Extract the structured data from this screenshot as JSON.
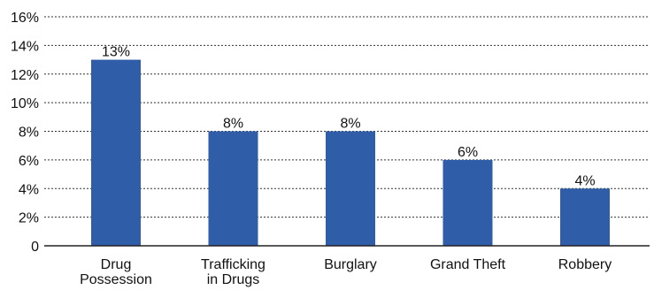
{
  "chart_data": {
    "type": "bar",
    "title": "",
    "xlabel": "",
    "ylabel": "",
    "ylim": [
      0,
      16
    ],
    "grid": true,
    "y_ticks": [
      "0",
      "2%",
      "4%",
      "6%",
      "8%",
      "10%",
      "12%",
      "14%",
      "16%"
    ],
    "y_tick_values": [
      0,
      2,
      4,
      6,
      8,
      10,
      12,
      14,
      16
    ],
    "categories": [
      [
        "Drug",
        "Possession"
      ],
      [
        "Trafficking",
        "in Drugs"
      ],
      [
        "Burglary"
      ],
      [
        "Grand Theft"
      ],
      [
        "Robbery"
      ]
    ],
    "values": [
      13,
      8,
      8,
      6,
      4
    ],
    "data_labels": [
      "13%",
      "8%",
      "8%",
      "6%",
      "4%"
    ],
    "bar_color": "#2f5da8"
  }
}
